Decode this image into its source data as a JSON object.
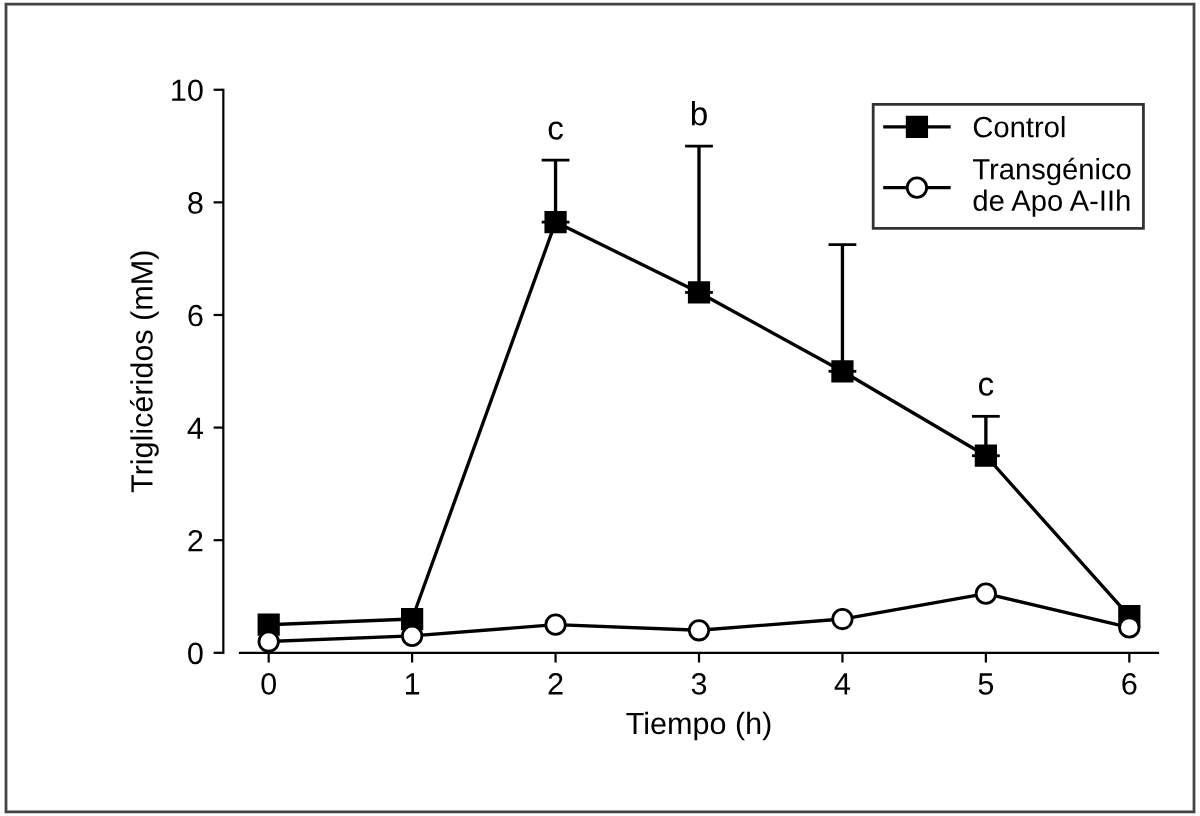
{
  "chart_data": {
    "type": "line",
    "xlabel": "Tiempo (h)",
    "ylabel": "Triglicéridos (mM)",
    "x": [
      0,
      1,
      2,
      3,
      4,
      5,
      6
    ],
    "series": [
      {
        "name": "Control",
        "color": "#000000",
        "marker": "square",
        "values": [
          0.5,
          0.6,
          7.65,
          6.4,
          5.0,
          3.5,
          0.65
        ],
        "errors": [
          null,
          null,
          [
            7.65,
            8.75
          ],
          [
            6.4,
            9.0
          ],
          [
            5.0,
            7.25
          ],
          [
            3.5,
            4.2
          ],
          null
        ]
      },
      {
        "name": "Transgénico\nde Apo A-IIh",
        "color": "#000000",
        "marker": "circle",
        "values": [
          0.2,
          0.3,
          0.5,
          0.4,
          0.6,
          1.05,
          0.45
        ]
      }
    ],
    "annotations": [
      {
        "text": "c",
        "x": 2,
        "y": 8.75
      },
      {
        "text": "b",
        "x": 3,
        "y": 9.0
      },
      {
        "text": "c",
        "x": 5,
        "y": 4.2
      }
    ],
    "xlim": [
      -0.2,
      6.2
    ],
    "ylim": [
      0,
      10
    ],
    "xticks": [
      0,
      1,
      2,
      3,
      4,
      5,
      6
    ],
    "yticks": [
      0,
      2,
      4,
      6,
      8,
      10
    ],
    "legend": "top right",
    "grid": false,
    "line_style": "solid"
  }
}
